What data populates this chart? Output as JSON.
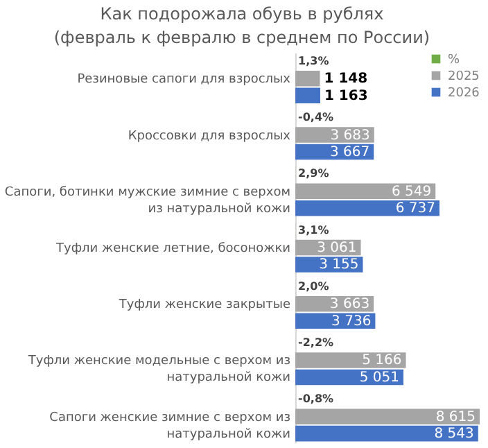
{
  "chart_data": {
    "type": "bar",
    "orientation": "horizontal",
    "title": "Как подорожала обувь в рублях\n(февраль к февралю в среднем по России)",
    "categories": [
      "Резиновые сапоги для взрослых",
      "Кроссовки для взрослых",
      "Сапоги, ботинки мужские зимние с верхом из натуральной кожи",
      "Туфли женские летние,  босоножки",
      "Туфли женские закрытые",
      "Туфли женские модельные с верхом из натуральной кожи",
      "Сапоги женские зимние с верхом из натуральной кожи"
    ],
    "series": [
      {
        "name": "%",
        "color": "#70ad47",
        "values": [
          1.3,
          -0.4,
          2.9,
          3.1,
          2.0,
          -2.2,
          -0.8
        ],
        "value_labels": [
          "1,3%",
          "-0,4%",
          "2,9%",
          "3,1%",
          "2,0%",
          "-2,2%",
          "-0,8%"
        ]
      },
      {
        "name": "2025",
        "color": "#a5a5a5",
        "values": [
          1148,
          3683,
          6549,
          3061,
          3663,
          5166,
          8615
        ],
        "value_labels": [
          "1 148",
          "3 683",
          "6 549",
          "3 061",
          "3 663",
          "5 166",
          "8 615"
        ]
      },
      {
        "name": "2026",
        "color": "#4472c4",
        "values": [
          1163,
          3667,
          6737,
          3155,
          3736,
          5051,
          8543
        ],
        "value_labels": [
          "1 163",
          "3 667",
          "6 737",
          "3 155",
          "3 736",
          "5 051",
          "8 543"
        ]
      }
    ],
    "tick_labels": "y",
    "legend": "top right"
  }
}
